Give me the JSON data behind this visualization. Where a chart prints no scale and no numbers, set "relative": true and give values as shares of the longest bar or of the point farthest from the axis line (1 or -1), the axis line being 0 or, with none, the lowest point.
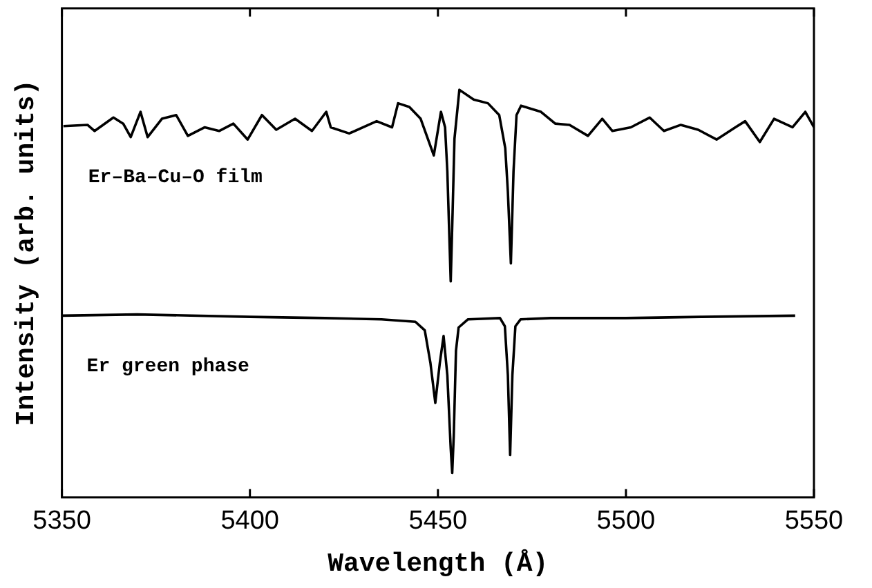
{
  "chart_data": {
    "type": "line",
    "relative": true,
    "xlabel": "Wavelength (Å)",
    "ylabel": "Intensity (arb. units)",
    "xlim": [
      5350,
      5550
    ],
    "xticks": [
      5350,
      5400,
      5450,
      5500,
      5550
    ],
    "grid": false,
    "legend": false,
    "marker": "none",
    "line_style": "solid",
    "series": [
      {
        "name": "Er–Ba–Cu–O film",
        "color": "#000000",
        "x": [
          5350.4,
          5356.8,
          5358.7,
          5363.7,
          5366.3,
          5368.3,
          5370.9,
          5372.8,
          5376.6,
          5380.4,
          5383.5,
          5388.0,
          5391.8,
          5395.6,
          5399.4,
          5403.2,
          5407.0,
          5412.0,
          5416.5,
          5420.3,
          5421.5,
          5426.4,
          5433.7,
          5437.8,
          5439.4,
          5442.4,
          5445.4,
          5448.9,
          5450.8,
          5451.9,
          5452.5,
          5453.0,
          5453.4,
          5453.9,
          5454.4,
          5455.7,
          5459.5,
          5463.3,
          5466.3,
          5467.9,
          5468.6,
          5469.4,
          5470.1,
          5470.9,
          5472.1,
          5477.4,
          5481.2,
          5485.0,
          5489.9,
          5493.7,
          5496.4,
          5501.3,
          5506.3,
          5510.1,
          5514.6,
          5519.2,
          5524.1,
          5529.1,
          5531.7,
          5535.6,
          5539.4,
          5544.3,
          5547.7,
          5550
        ],
        "values": [
          0.911,
          0.914,
          0.899,
          0.932,
          0.917,
          0.884,
          0.946,
          0.884,
          0.929,
          0.938,
          0.887,
          0.908,
          0.899,
          0.917,
          0.878,
          0.938,
          0.902,
          0.929,
          0.899,
          0.946,
          0.908,
          0.893,
          0.923,
          0.908,
          0.967,
          0.958,
          0.929,
          0.839,
          0.946,
          0.908,
          0.8,
          0.65,
          0.53,
          0.7,
          0.88,
          1,
          0.976,
          0.967,
          0.938,
          0.857,
          0.75,
          0.574,
          0.8,
          0.938,
          0.961,
          0.946,
          0.917,
          0.914,
          0.887,
          0.929,
          0.899,
          0.908,
          0.932,
          0.899,
          0.914,
          0.902,
          0.878,
          0.908,
          0.923,
          0.872,
          0.929,
          0.908,
          0.946,
          0.908
        ]
      },
      {
        "name": "Er green phase",
        "color": "#000000",
        "x": [
          5350,
          5370,
          5400,
          5420,
          5435,
          5444,
          5446.5,
          5448,
          5449.3,
          5450.5,
          5451.5,
          5452.5,
          5453.4,
          5453.8,
          5454.2,
          5454.8,
          5455.5,
          5458,
          5466.5,
          5467.8,
          5468.6,
          5469.2,
          5469.8,
          5470.6,
          5472,
          5480,
          5500,
          5520,
          5545
        ],
        "values": [
          0.446,
          0.449,
          0.443,
          0.44,
          0.437,
          0.431,
          0.41,
          0.33,
          0.232,
          0.33,
          0.396,
          0.3,
          0.12,
          0.06,
          0.15,
          0.36,
          0.417,
          0.437,
          0.44,
          0.42,
          0.3,
          0.104,
          0.3,
          0.42,
          0.437,
          0.44,
          0.44,
          0.443,
          0.446
        ]
      }
    ]
  }
}
